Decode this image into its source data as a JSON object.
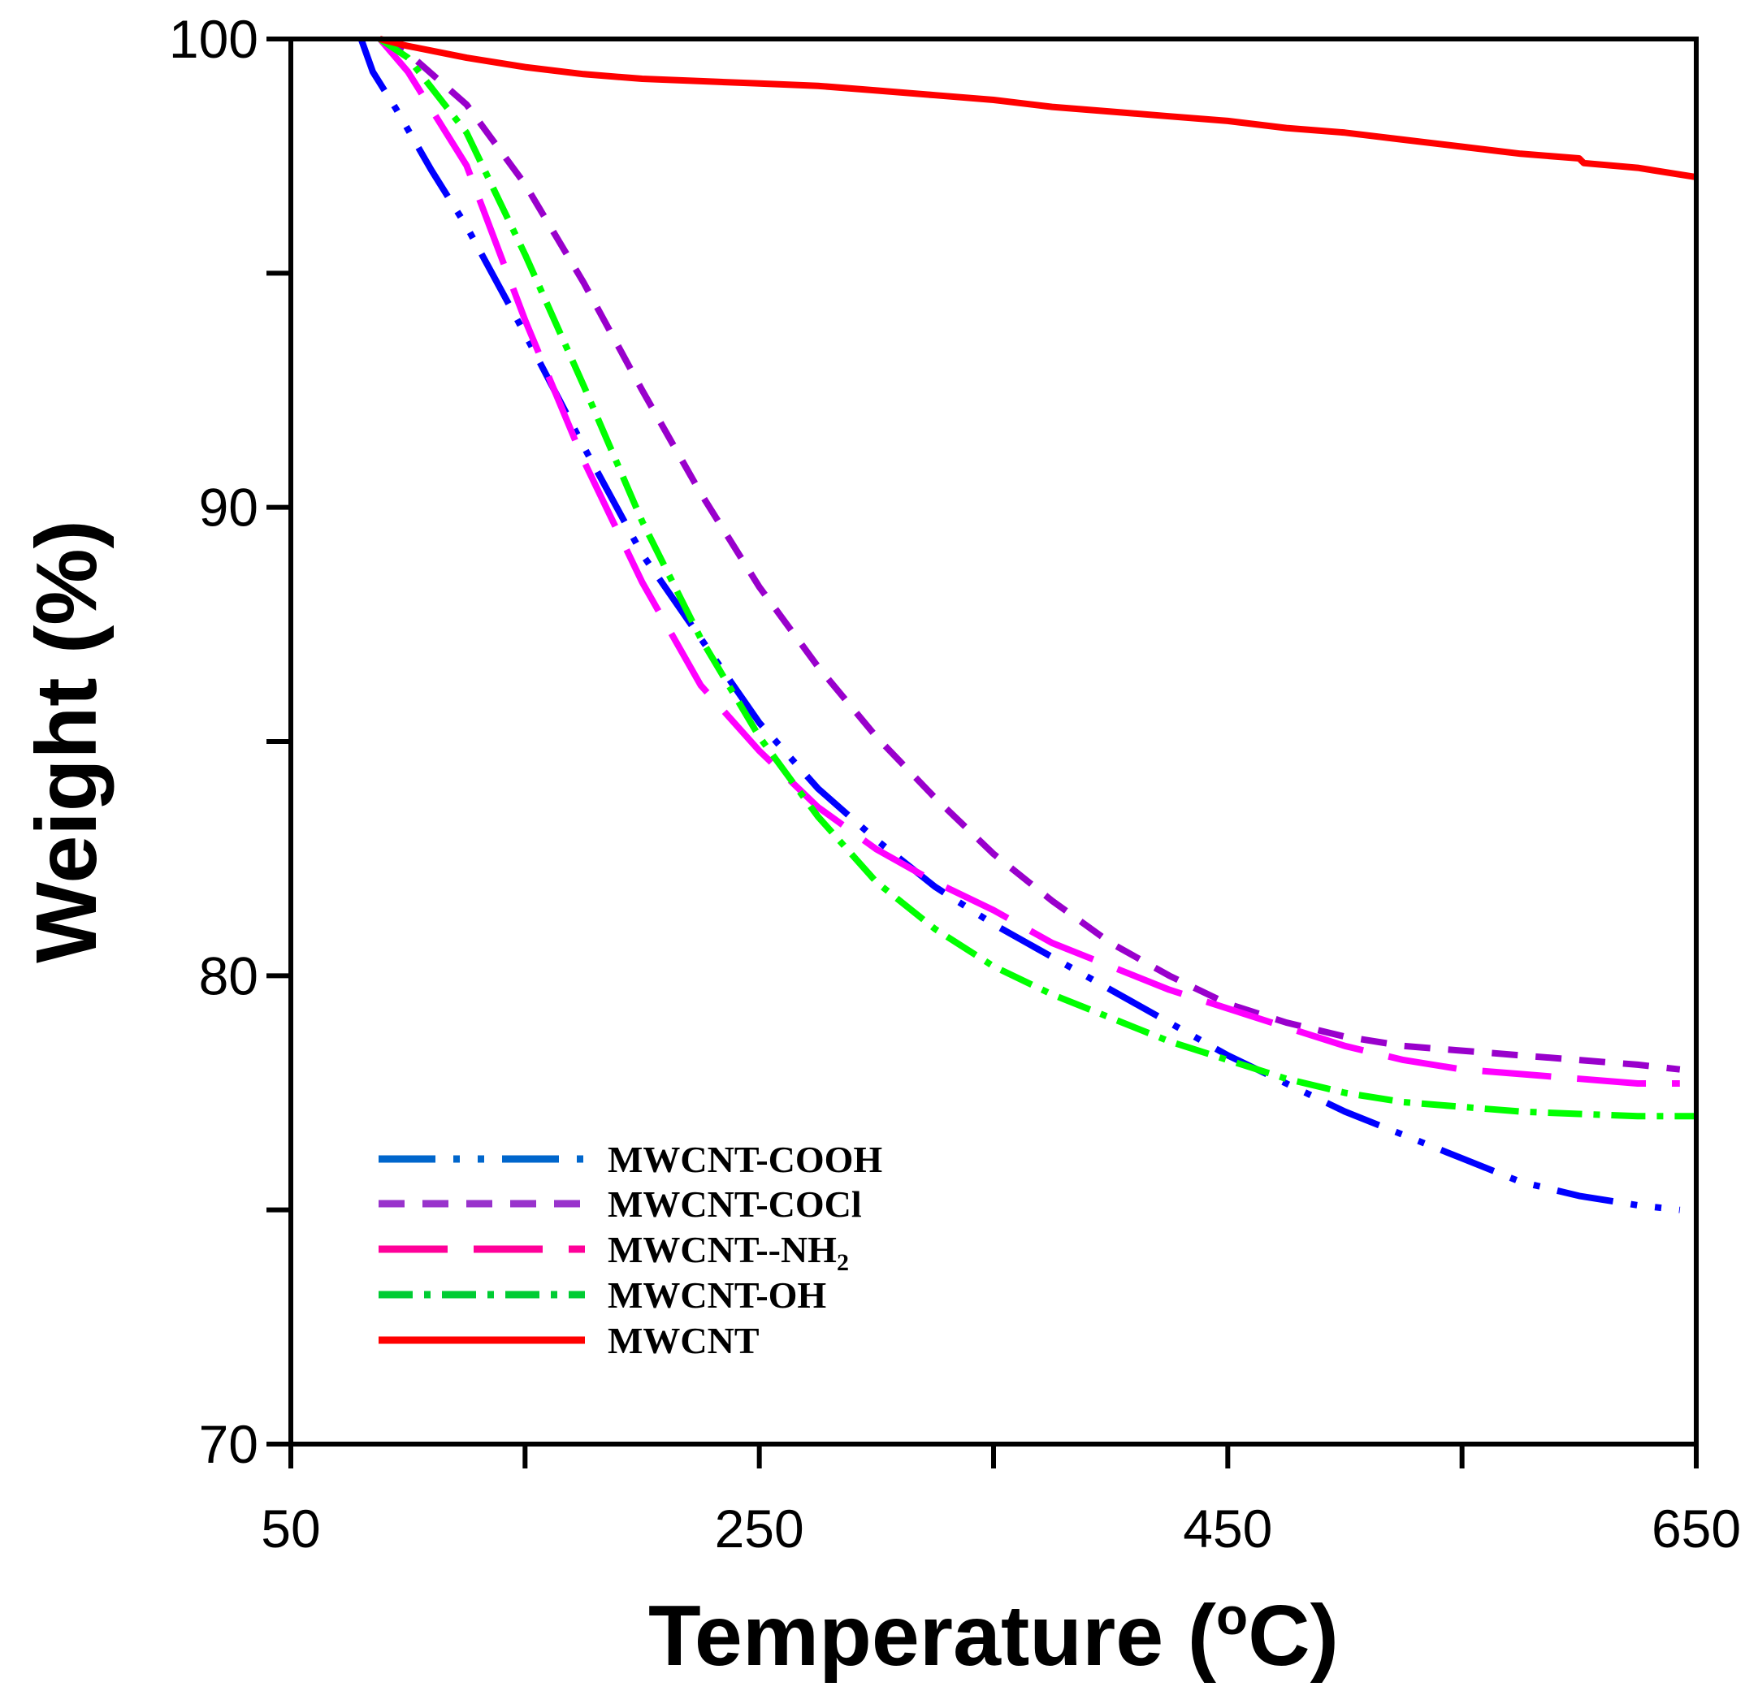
{
  "chart_data": {
    "type": "line",
    "title": "",
    "xlabel": "Temperature (",
    "xlabel_sup": "o",
    "xlabel_end": "C)",
    "ylabel": "Weight (%)",
    "xlim": [
      50,
      650
    ],
    "ylim": [
      70,
      100
    ],
    "x_ticks": [
      50,
      150,
      250,
      350,
      450,
      550,
      650
    ],
    "x_tick_labels": [
      "50",
      "",
      "250",
      "",
      "450",
      "",
      "650"
    ],
    "y_ticks": [
      70,
      75,
      80,
      85,
      90,
      95,
      100
    ],
    "y_tick_labels": [
      "70",
      "",
      "80",
      "",
      "90",
      "",
      "100"
    ],
    "grid": false,
    "legend_position": "bottom-left",
    "series": [
      {
        "name": "MWCNT-COOH",
        "color": "#0000ff",
        "legend_color": "#0066cc",
        "dash": "70,22,8,22,8,22",
        "x": [
          80,
          85,
          95,
          110,
          125,
          150,
          175,
          200,
          225,
          250,
          275,
          300,
          325,
          350,
          375,
          400,
          425,
          450,
          475,
          500,
          525,
          550,
          575,
          600,
          625,
          643
        ],
        "y": [
          100,
          99.3,
          98.5,
          97.2,
          96.0,
          93.7,
          91.3,
          89.0,
          87.2,
          85.4,
          84.0,
          82.9,
          81.9,
          81.1,
          80.4,
          79.7,
          79.0,
          78.3,
          77.7,
          77.1,
          76.6,
          76.1,
          75.6,
          75.3,
          75.1,
          75.0
        ]
      },
      {
        "name": "MWCNT-COCl",
        "color": "#9900cc",
        "legend_color": "#9933cc",
        "dash": "32,22",
        "x": [
          88,
          100,
          125,
          150,
          175,
          200,
          225,
          250,
          275,
          300,
          325,
          350,
          375,
          400,
          425,
          450,
          475,
          500,
          525,
          550,
          575,
          600,
          625,
          643
        ],
        "y": [
          100,
          99.7,
          98.6,
          96.9,
          94.8,
          92.5,
          90.3,
          88.3,
          86.6,
          85.1,
          83.8,
          82.6,
          81.6,
          80.7,
          80.0,
          79.4,
          79.0,
          78.7,
          78.5,
          78.4,
          78.3,
          78.2,
          78.1,
          78.0
        ]
      },
      {
        "name": "MWCNT--NH",
        "name_sub": "2",
        "color": "#ff00ff",
        "legend_color": "#ff0099",
        "dash": "85,32",
        "x": [
          88,
          100,
          125,
          150,
          175,
          200,
          225,
          250,
          275,
          300,
          325,
          350,
          375,
          400,
          425,
          450,
          475,
          500,
          525,
          550,
          575,
          600,
          625,
          643
        ],
        "y": [
          100,
          99.3,
          97.3,
          94.0,
          91.0,
          88.4,
          86.2,
          84.8,
          83.6,
          82.7,
          82.0,
          81.4,
          80.7,
          80.2,
          79.7,
          79.3,
          78.9,
          78.5,
          78.2,
          78.0,
          77.9,
          77.8,
          77.7,
          77.7
        ]
      },
      {
        "name": "MWCNT-OH",
        "color": "#00ff00",
        "legend_color": "#00cc33",
        "dash": "42,14,8,14",
        "x": [
          88,
          100,
          125,
          150,
          175,
          200,
          225,
          250,
          275,
          300,
          325,
          350,
          375,
          400,
          425,
          450,
          475,
          500,
          525,
          550,
          575,
          600,
          625,
          650
        ],
        "y": [
          100,
          99.6,
          98.0,
          95.4,
          92.6,
          89.7,
          87.2,
          85.1,
          83.4,
          82.0,
          81.0,
          80.2,
          79.6,
          79.1,
          78.6,
          78.2,
          77.8,
          77.5,
          77.3,
          77.2,
          77.1,
          77.05,
          77.0,
          77.0
        ]
      },
      {
        "name": "MWCNT",
        "color": "#ff0000",
        "legend_color": "#ff0000",
        "dash": "",
        "x": [
          88,
          100,
          125,
          150,
          175,
          200,
          225,
          250,
          275,
          300,
          325,
          350,
          375,
          400,
          425,
          450,
          475,
          500,
          525,
          550,
          575,
          600,
          602,
          625,
          650
        ],
        "y": [
          100,
          99.85,
          99.6,
          99.4,
          99.25,
          99.15,
          99.1,
          99.05,
          99.0,
          98.9,
          98.8,
          98.7,
          98.55,
          98.45,
          98.35,
          98.25,
          98.1,
          98.0,
          97.85,
          97.7,
          97.55,
          97.45,
          97.35,
          97.25,
          97.05
        ]
      }
    ]
  }
}
